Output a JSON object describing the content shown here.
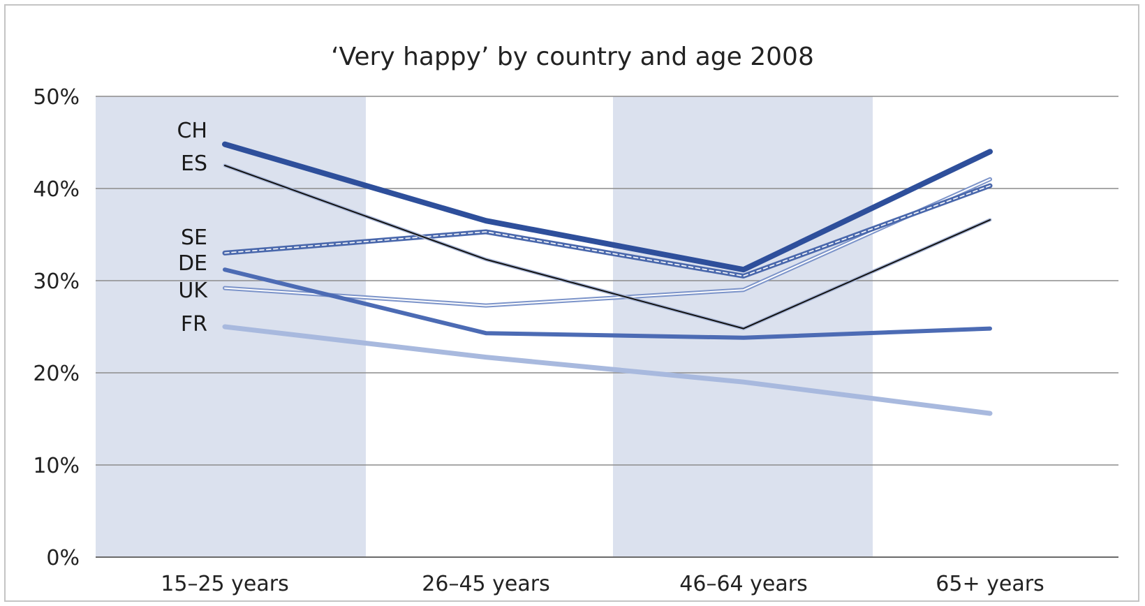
{
  "chart_data": {
    "type": "line",
    "title": "‘Very happy’ by country and age 2008",
    "xlabel": "",
    "ylabel": "",
    "categories": [
      "15–25 years",
      "26–45 years",
      "46–64 years",
      "65+ years"
    ],
    "ylim": [
      0,
      50
    ],
    "yticks": [
      0,
      10,
      20,
      30,
      40,
      50
    ],
    "ytick_labels": [
      "0%",
      "10%",
      "20%",
      "30%",
      "40%",
      "50%"
    ],
    "grid": true,
    "shaded_bands": [
      0,
      2
    ],
    "legend": "inline-left",
    "series": [
      {
        "name": "CH",
        "values": [
          44.8,
          36.5,
          31.2,
          44.0
        ],
        "color": "#2e4f9b",
        "style": "thick"
      },
      {
        "name": "ES",
        "values": [
          42.5,
          32.3,
          24.8,
          36.6
        ],
        "color": "#111111",
        "style": "dark-outline"
      },
      {
        "name": "SE",
        "values": [
          33.0,
          35.3,
          30.5,
          40.3
        ],
        "color": "#4a68ac",
        "style": "dashed-double"
      },
      {
        "name": "DE",
        "values": [
          31.2,
          24.3,
          23.8,
          24.8
        ],
        "color": "#4c6bb4",
        "style": "medium"
      },
      {
        "name": "UK",
        "values": [
          29.2,
          27.3,
          29.0,
          41.0
        ],
        "color": "#7b93c9",
        "style": "double"
      },
      {
        "name": "FR",
        "values": [
          25.0,
          21.7,
          19.0,
          15.6
        ],
        "color": "#a8b9de",
        "style": "light"
      }
    ]
  },
  "colors": {
    "band": "#dbe1ee",
    "grid": "#8c8c8c",
    "axis": "#6a6a6a"
  }
}
